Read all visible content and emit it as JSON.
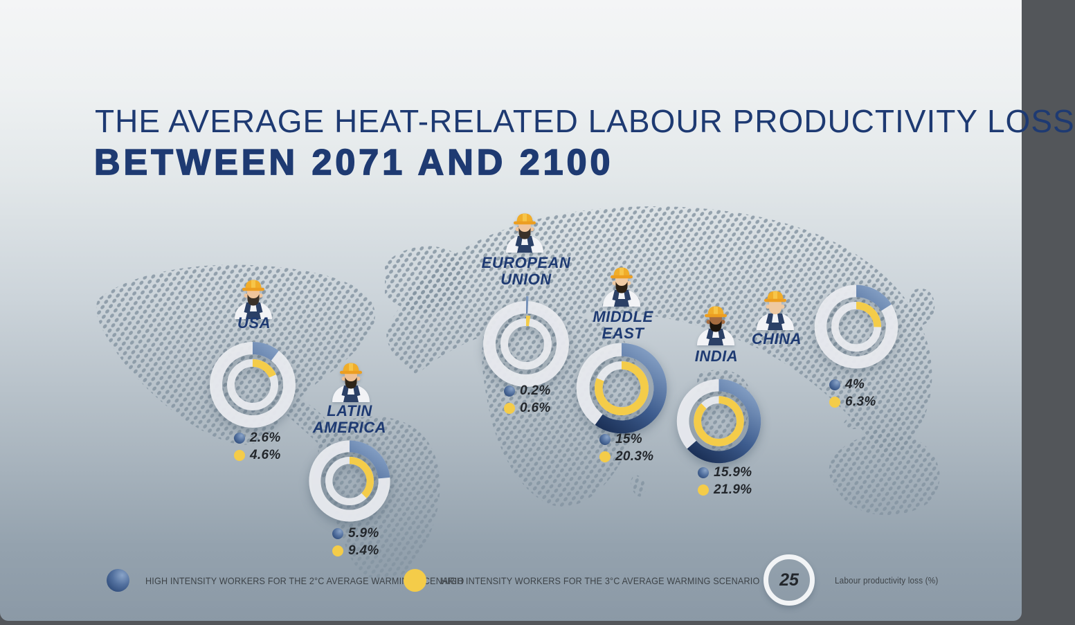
{
  "title": {
    "line1": "THE AVERAGE HEAT-RELATED LABOUR PRODUCTIVITY LOSS",
    "line2": "BETWEEN 2071 AND 2100"
  },
  "scale": {
    "full_circle_value": 25
  },
  "regions": [
    {
      "id": "usa",
      "label": "USA",
      "label_lines": [
        "USA"
      ],
      "icon": "construction-worker-icon",
      "worker": {
        "skin": "#efc59d",
        "beard": "#3a3129"
      },
      "values": {
        "two_deg": "2.6%",
        "three_deg": "4.6%"
      },
      "numeric": {
        "two_deg": 2.6,
        "three_deg": 4.6
      }
    },
    {
      "id": "latin-america",
      "label": "LATIN AMERICA",
      "label_lines": [
        "LATIN",
        "AMERICA"
      ],
      "icon": "construction-worker-icon",
      "worker": {
        "skin": "#eec094",
        "beard": "#2e2519"
      },
      "values": {
        "two_deg": "5.9%",
        "three_deg": "9.4%"
      },
      "numeric": {
        "two_deg": 5.9,
        "three_deg": 9.4
      }
    },
    {
      "id": "european-union",
      "label": "EUROPEAN UNION",
      "label_lines": [
        "EUROPEAN",
        "UNION"
      ],
      "icon": "construction-worker-icon",
      "worker": {
        "skin": "#efc59d",
        "beard": "#3a3129"
      },
      "values": {
        "two_deg": "0.2%",
        "three_deg": "0.6%"
      },
      "numeric": {
        "two_deg": 0.2,
        "three_deg": 0.6
      }
    },
    {
      "id": "middle-east",
      "label": "MIDDLE EAST",
      "label_lines": [
        "MIDDLE",
        "EAST"
      ],
      "icon": "construction-worker-icon",
      "worker": {
        "skin": "#f0cba4",
        "beard": "#2b2013"
      },
      "values": {
        "two_deg": "15%",
        "three_deg": "20.3%"
      },
      "numeric": {
        "two_deg": 15,
        "three_deg": 20.3
      }
    },
    {
      "id": "india",
      "label": "INDIA",
      "label_lines": [
        "INDIA"
      ],
      "icon": "construction-worker-icon",
      "worker": {
        "skin": "#a46b3f",
        "beard": "#1d150d"
      },
      "values": {
        "two_deg": "15.9%",
        "three_deg": "21.9%"
      },
      "numeric": {
        "two_deg": 15.9,
        "three_deg": 21.9
      }
    },
    {
      "id": "china",
      "label": "CHINA",
      "label_lines": [
        "CHINA"
      ],
      "icon": "construction-worker-icon",
      "worker": {
        "skin": "#efc9a1",
        "beard": null
      },
      "values": {
        "two_deg": "4%",
        "three_deg": "6.3%"
      },
      "numeric": {
        "two_deg": 4,
        "three_deg": 6.3
      }
    }
  ],
  "legend": {
    "blue_label": "HIGH INTENSITY WORKERS FOR THE 2°C AVERAGE WARMING SCENARIO",
    "yellow_label": "HIGH INTENSITY WORKERS FOR THE 3°C AVERAGE WARMING SCENARIO",
    "scale_circle_value": "25",
    "scale_label": "Labour productivity loss (%)"
  },
  "colors": {
    "navy": "#1e3a72",
    "blue_dark": "#14274b",
    "blue_mid": "#3d5c8e",
    "blue_light": "#93adcf",
    "yellow": "#f4cc49",
    "ring": "#e9ebef",
    "value_text": "#23272c",
    "hat": "#f0ad2a",
    "map_dot": "#8493a1"
  },
  "chart_data": {
    "type": "pie",
    "subtype": "multi-donut",
    "title": "THE AVERAGE HEAT-RELATED LABOUR PRODUCTIVITY LOSS BETWEEN 2071 AND 2100",
    "categories": [
      "USA",
      "LATIN AMERICA",
      "EUROPEAN UNION",
      "MIDDLE EAST",
      "INDIA",
      "CHINA"
    ],
    "series": [
      {
        "name": "High intensity workers for the 2°C average warming scenario",
        "color": "#2b4a7e",
        "values": [
          2.6,
          5.9,
          0.2,
          15,
          15.9,
          4
        ]
      },
      {
        "name": "High intensity workers for the 3°C average warming scenario",
        "color": "#f4cc49",
        "values": [
          4.6,
          9.4,
          0.6,
          20.3,
          21.9,
          6.3
        ]
      }
    ],
    "unit": "%",
    "full_circle_value": 25,
    "legend_position": "bottom"
  }
}
